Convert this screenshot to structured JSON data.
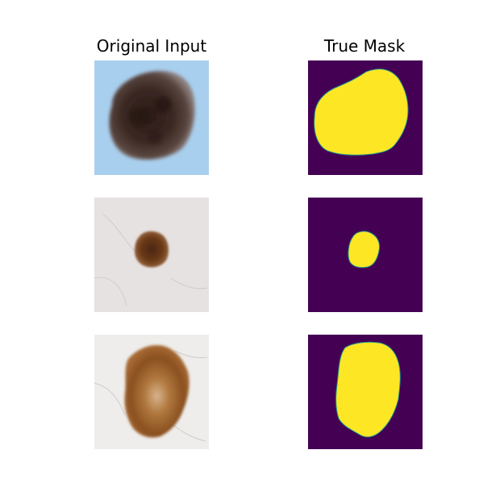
{
  "columns": {
    "left_title": "Original Input",
    "right_title": "True Mask"
  },
  "rows": [
    {
      "input_name": "lesion-input-1",
      "mask_name": "lesion-mask-1"
    },
    {
      "input_name": "lesion-input-2",
      "mask_name": "lesion-mask-2"
    },
    {
      "input_name": "lesion-input-3",
      "mask_name": "lesion-mask-3"
    }
  ],
  "colors": {
    "mask_background": "#440154",
    "mask_foreground": "#fde725",
    "mask_edge": "#21918c",
    "input1_background": "#a9cfee",
    "input2_background": "#e6e2e1",
    "input3_background": "#eeedeb"
  }
}
